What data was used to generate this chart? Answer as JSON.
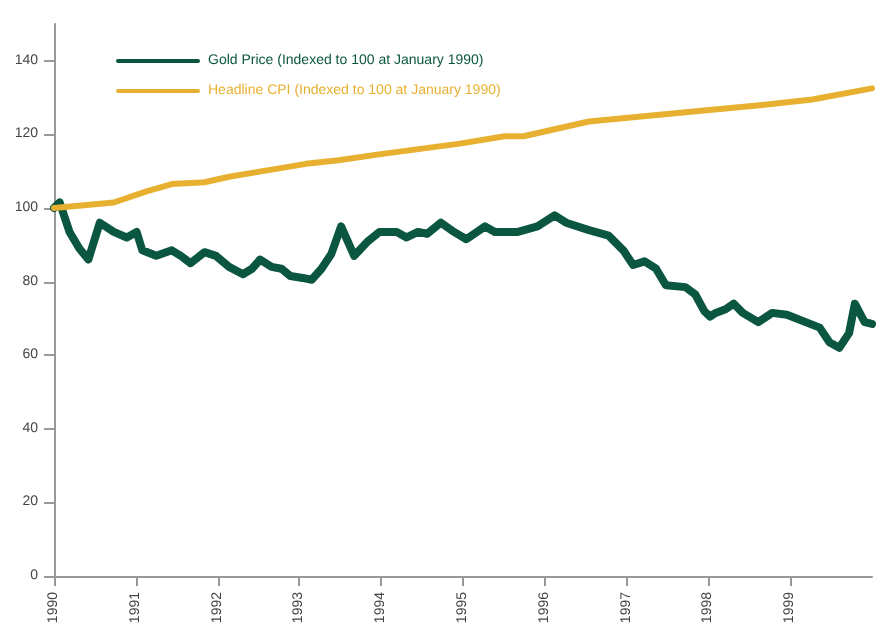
{
  "chart_data": {
    "type": "line",
    "xlim": [
      1990,
      2000
    ],
    "xticks": [
      1990,
      1991,
      1992,
      1993,
      1994,
      1995,
      1996,
      1997,
      1998,
      1999
    ],
    "ylim": [
      0,
      150
    ],
    "yticks": [
      0,
      20,
      40,
      60,
      80,
      100,
      120,
      140
    ],
    "grid": false,
    "legend": "top left",
    "marker": "none",
    "line_style": "solid",
    "series": [
      {
        "name": "Gold Price (Indexed to 100 at January 1990)",
        "color": "#0b5640",
        "x": [
          1990,
          1990.07,
          1990.19,
          1990.31,
          1990.42,
          1990.56,
          1990.73,
          1990.89,
          1991.01,
          1991.08,
          1991.25,
          1991.44,
          1991.55,
          1991.67,
          1991.84,
          1991.98,
          1992.14,
          1992.31,
          1992.42,
          1992.52,
          1992.66,
          1992.78,
          1992.89,
          1993.04,
          1993.15,
          1993.27,
          1993.39,
          1993.51,
          1993.67,
          1993.84,
          1993.98,
          1994.19,
          1994.31,
          1994.45,
          1994.56,
          1994.73,
          1994.89,
          1995.04,
          1995.27,
          1995.39,
          1995.67,
          1995.91,
          1996.12,
          1996.26,
          1996.54,
          1996.78,
          1996.96,
          1997.08,
          1997.22,
          1997.36,
          1997.48,
          1997.72,
          1997.84,
          1997.95,
          1998.02,
          1998.09,
          1998.21,
          1998.31,
          1998.42,
          1998.61,
          1998.78,
          1998.96,
          1999.36,
          1999.48,
          1999.6,
          1999.72,
          1999.79,
          1999.91,
          2000
        ],
        "values": [
          100,
          101.5,
          93.5,
          89,
          86,
          96,
          93.5,
          92,
          93.5,
          88.5,
          87,
          88.5,
          87,
          85,
          88,
          87,
          84,
          82,
          83.5,
          86,
          84,
          83.5,
          81.5,
          81,
          80.5,
          83.5,
          87.5,
          95,
          87,
          91,
          93.5,
          93.5,
          92,
          93.5,
          93,
          96,
          93.5,
          91.5,
          95,
          93.5,
          93.5,
          95,
          98,
          96,
          94,
          92.5,
          88.5,
          84.5,
          85.5,
          83.5,
          79,
          78.5,
          76.5,
          72,
          70.5,
          71.5,
          72.5,
          74,
          71.5,
          69,
          71.5,
          71,
          67.5,
          63.5,
          62,
          66,
          74,
          69,
          68.5
        ]
      },
      {
        "name": "Headline CPI (Indexed to 100 at January 1990)",
        "color": "#e8b031",
        "x": [
          1990,
          1990.73,
          1991.13,
          1991.44,
          1991.84,
          1992.14,
          1992.68,
          1993.08,
          1993.48,
          1993.95,
          1994.96,
          1995.51,
          1995.74,
          1996.54,
          1997.72,
          1998.66,
          1999.27,
          2000
        ],
        "values": [
          100,
          101.5,
          104.5,
          106.5,
          107,
          108.5,
          110.5,
          112,
          113,
          114.5,
          117.5,
          119.5,
          119.5,
          123.5,
          126,
          128,
          129.5,
          132.5
        ]
      }
    ]
  }
}
